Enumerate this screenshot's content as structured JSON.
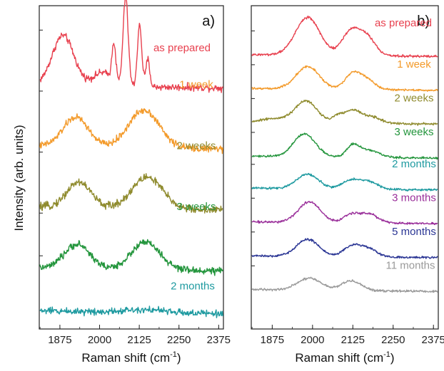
{
  "figure": {
    "ylabel": "Intensity (arb. units)"
  },
  "chart_data": [
    {
      "type": "line",
      "panel_label": "a)",
      "xlabel": "Raman shift (cm",
      "xlabel_sup": "-1",
      "xlabel_tail": ")",
      "xlim": [
        1810,
        2390
      ],
      "xticks": [
        1875,
        2000,
        2125,
        2250,
        2375
      ],
      "ylim": [
        0,
        5.3
      ],
      "series": [
        {
          "name": "as prepared",
          "color": "#e8414f",
          "offset": 4.0,
          "noise": 0.035,
          "peaks": [
            {
              "center": 1885,
              "height": 0.82,
              "width": 34
            },
            {
              "center": 2045,
              "height": 0.62,
              "width": 6
            },
            {
              "center": 2082,
              "height": 1.45,
              "width": 8
            },
            {
              "center": 2126,
              "height": 1.0,
              "width": 7
            },
            {
              "center": 2152,
              "height": 0.45,
              "width": 6
            },
            {
              "center": 2010,
              "height": 0.22,
              "width": 30
            }
          ]
        },
        {
          "name": "1 week",
          "color": "#f39a2a",
          "offset": 3.0,
          "noise": 0.035,
          "peaks": [
            {
              "center": 1925,
              "height": 0.48,
              "width": 40
            },
            {
              "center": 2140,
              "height": 0.62,
              "width": 48
            }
          ]
        },
        {
          "name": "2 weeks",
          "color": "#8f8b2e",
          "offset": 2.0,
          "noise": 0.04,
          "peaks": [
            {
              "center": 1935,
              "height": 0.42,
              "width": 38
            },
            {
              "center": 2150,
              "height": 0.52,
              "width": 48
            }
          ]
        },
        {
          "name": "3 weeks",
          "color": "#23953c",
          "offset": 1.0,
          "noise": 0.035,
          "peaks": [
            {
              "center": 1930,
              "height": 0.4,
              "width": 40
            },
            {
              "center": 2145,
              "height": 0.45,
              "width": 45
            }
          ]
        },
        {
          "name": "2 months",
          "color": "#1e9aa0",
          "offset": 0.3,
          "noise": 0.035,
          "peaks": [
            {
              "center": 2140,
              "height": 0.05,
              "width": 60
            }
          ]
        }
      ]
    },
    {
      "type": "line",
      "panel_label": "b)",
      "xlabel": "Raman shift (cm",
      "xlabel_sup": "-1",
      "xlabel_tail": ")",
      "xlim": [
        1810,
        2390
      ],
      "xticks": [
        1875,
        2000,
        2125,
        2250,
        2375
      ],
      "ylim": [
        0,
        8.6
      ],
      "series": [
        {
          "name": "as prepared",
          "color": "#e8414f",
          "offset": 7.3,
          "noise": 0.02,
          "peaks": [
            {
              "center": 1985,
              "height": 1.0,
              "width": 38
            },
            {
              "center": 2120,
              "height": 0.65,
              "width": 28
            },
            {
              "center": 2170,
              "height": 0.45,
              "width": 26
            }
          ]
        },
        {
          "name": "1 week",
          "color": "#f39a2a",
          "offset": 6.4,
          "noise": 0.018,
          "peaks": [
            {
              "center": 1985,
              "height": 0.6,
              "width": 36
            },
            {
              "center": 2125,
              "height": 0.42,
              "width": 24
            },
            {
              "center": 2170,
              "height": 0.25,
              "width": 24
            }
          ]
        },
        {
          "name": "2 weeks",
          "color": "#8f8b2e",
          "offset": 5.5,
          "noise": 0.02,
          "peaks": [
            {
              "center": 1980,
              "height": 0.58,
              "width": 34
            },
            {
              "center": 2080,
              "height": 0.2,
              "width": 18
            },
            {
              "center": 2125,
              "height": 0.32,
              "width": 22
            },
            {
              "center": 2180,
              "height": 0.18,
              "width": 30
            },
            {
              "center": 1880,
              "height": 0.1,
              "width": 40
            }
          ]
        },
        {
          "name": "3 weeks",
          "color": "#23953c",
          "offset": 4.6,
          "noise": 0.018,
          "peaks": [
            {
              "center": 1975,
              "height": 0.6,
              "width": 34
            },
            {
              "center": 2125,
              "height": 0.3,
              "width": 20
            },
            {
              "center": 2175,
              "height": 0.18,
              "width": 30
            }
          ]
        },
        {
          "name": "2 months",
          "color": "#1e9aa0",
          "offset": 3.75,
          "noise": 0.018,
          "peaks": [
            {
              "center": 1985,
              "height": 0.38,
              "width": 34
            },
            {
              "center": 2115,
              "height": 0.22,
              "width": 24
            },
            {
              "center": 2170,
              "height": 0.22,
              "width": 28
            }
          ]
        },
        {
          "name": "3 months",
          "color": "#9a2f9a",
          "offset": 2.85,
          "noise": 0.018,
          "peaks": [
            {
              "center": 1990,
              "height": 0.55,
              "width": 34
            },
            {
              "center": 2120,
              "height": 0.22,
              "width": 24
            },
            {
              "center": 2175,
              "height": 0.24,
              "width": 28
            }
          ]
        },
        {
          "name": "5 months",
          "color": "#2a3594",
          "offset": 1.95,
          "noise": 0.018,
          "peaks": [
            {
              "center": 1985,
              "height": 0.45,
              "width": 34
            },
            {
              "center": 2120,
              "height": 0.26,
              "width": 26
            },
            {
              "center": 2170,
              "height": 0.22,
              "width": 28
            }
          ]
        },
        {
          "name": "11 months",
          "color": "#9a9a9a",
          "offset": 1.05,
          "noise": 0.018,
          "peaks": [
            {
              "center": 1990,
              "height": 0.32,
              "width": 36
            },
            {
              "center": 2120,
              "height": 0.26,
              "width": 30
            }
          ]
        }
      ]
    }
  ]
}
